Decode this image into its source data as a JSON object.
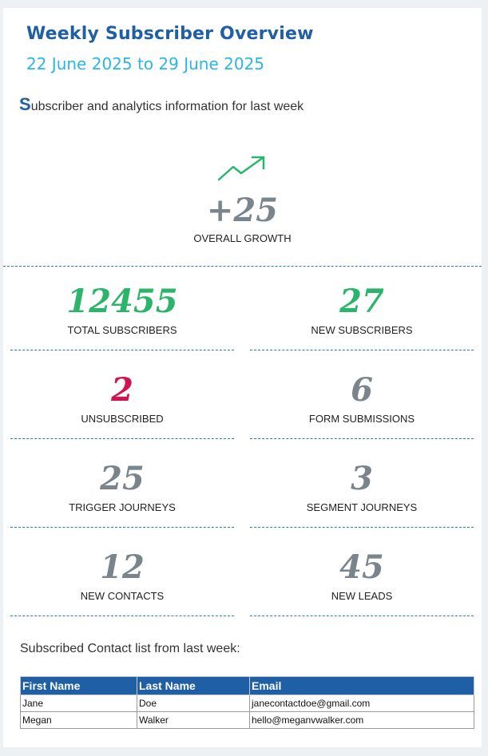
{
  "header": {
    "title": "Weekly Subscriber Overview",
    "date_range": "22 June 2025 to 29 June 2025"
  },
  "intro": {
    "initial": "S",
    "rest": "ubscriber and analytics information for last week"
  },
  "growth": {
    "value": "+25",
    "label": "OVERALL GROWTH",
    "icon": "trend-up-icon"
  },
  "stats": [
    {
      "value": "12455",
      "label": "TOTAL SUBSCRIBERS",
      "color": "#2bb56a"
    },
    {
      "value": "27",
      "label": "NEW SUBSCRIBERS",
      "color": "#2bb56a"
    },
    {
      "value": "2",
      "label": "UNSUBSCRIBED",
      "color": "#d1134f"
    },
    {
      "value": "6",
      "label": "FORM SUBMISSIONS",
      "color": "#7a858b"
    },
    {
      "value": "25",
      "label": "TRIGGER JOURNEYS",
      "color": "#7a858b"
    },
    {
      "value": "3",
      "label": "SEGMENT JOURNEYS",
      "color": "#7a858b"
    },
    {
      "value": "12",
      "label": "NEW CONTACTS",
      "color": "#7a858b"
    },
    {
      "value": "45",
      "label": "NEW LEADS",
      "color": "#7a858b"
    }
  ],
  "contacts": {
    "heading": "Subscribed Contact list from last week:",
    "columns": [
      "First Name",
      "Last Name",
      "Email"
    ],
    "rows": [
      [
        "Jane",
        "Doe",
        "janecontactdoe@gmail.com"
      ],
      [
        "Megan",
        "Walker",
        "hello@meganvwalker.com"
      ]
    ]
  }
}
